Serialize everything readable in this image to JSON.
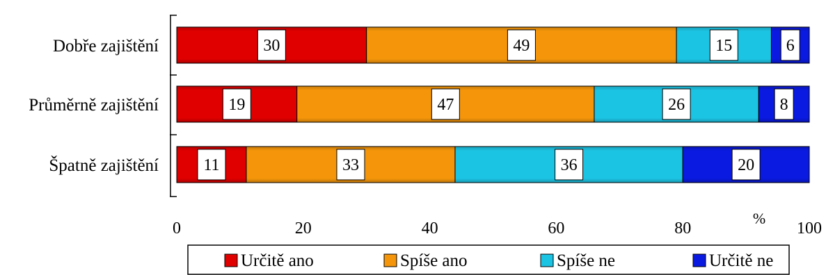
{
  "chart_data": {
    "type": "bar",
    "orientation": "horizontal",
    "stacked": true,
    "categories": [
      "Dobře zajištění",
      "Průměrně zajištění",
      "Špatně zajištění"
    ],
    "series": [
      {
        "name": "Určitě ano",
        "color": "#e00000",
        "values": [
          30,
          19,
          11
        ]
      },
      {
        "name": "Spíše ano",
        "color": "#f5960a",
        "values": [
          49,
          47,
          33
        ]
      },
      {
        "name": "Spíše ne",
        "color": "#1cc4e4",
        "values": [
          15,
          26,
          36
        ]
      },
      {
        "name": "Určitě ne",
        "color": "#0a1ae0",
        "values": [
          6,
          8,
          20
        ]
      }
    ],
    "x_ticks": [
      0,
      20,
      40,
      60,
      80,
      100
    ],
    "xlim": [
      0,
      100
    ],
    "unit": "%",
    "grid": false,
    "legend": "bottom"
  }
}
